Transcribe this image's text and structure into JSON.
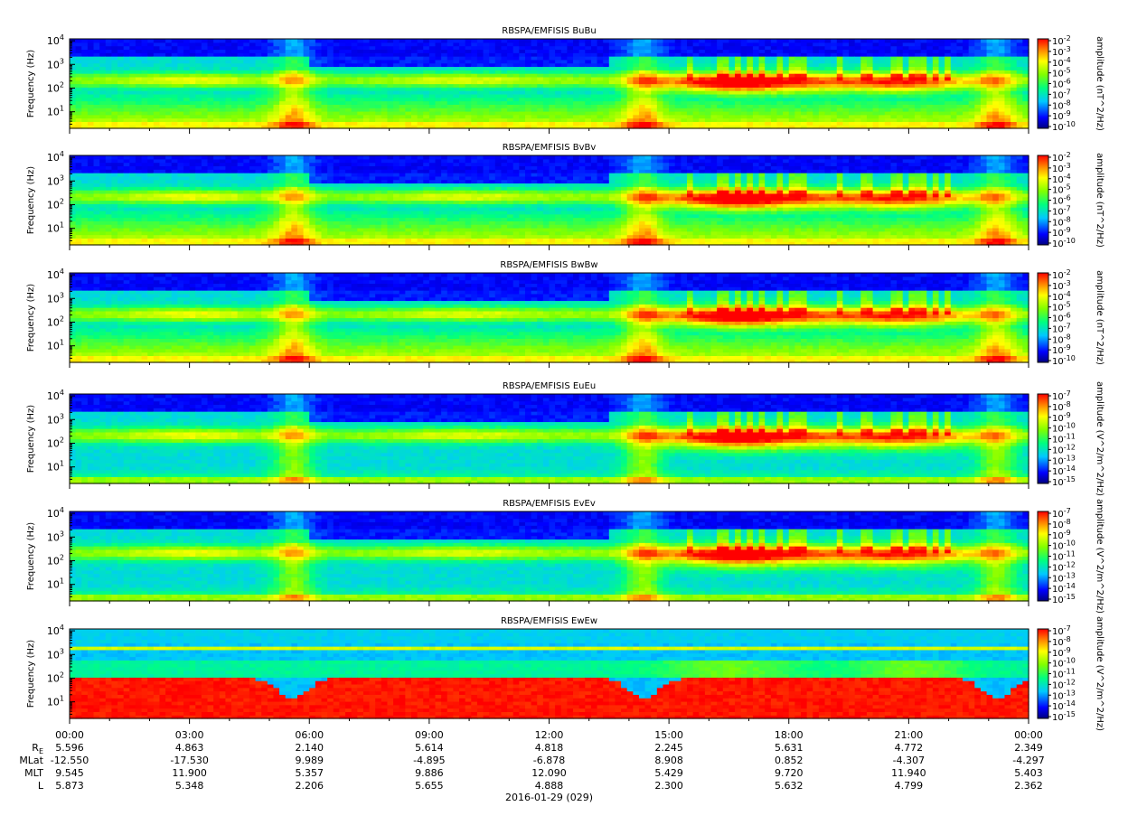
{
  "panels": [
    {
      "title": "RBSPA/EMFISIS  BuBu",
      "ylabel": "Frequency (Hz)",
      "ytick_exponents": [
        "4",
        "3",
        "2",
        "1"
      ],
      "cbar_label": "amplitude (nT^2/Hz)",
      "cbar_exponents": [
        "-2",
        "-3",
        "-4",
        "-5",
        "-6",
        "-7",
        "-8",
        "-9",
        "-10"
      ],
      "kind": "B"
    },
    {
      "title": "RBSPA/EMFISIS  BvBv",
      "ylabel": "Frequency (Hz)",
      "ytick_exponents": [
        "4",
        "3",
        "2",
        "1"
      ],
      "cbar_label": "amplitude (nT^2/Hz)",
      "cbar_exponents": [
        "-2",
        "-3",
        "-4",
        "-5",
        "-6",
        "-7",
        "-8",
        "-9",
        "-10"
      ],
      "kind": "B"
    },
    {
      "title": "RBSPA/EMFISIS  BwBw",
      "ylabel": "Frequency (Hz)",
      "ytick_exponents": [
        "4",
        "3",
        "2",
        "1"
      ],
      "cbar_label": "amplitude (nT^2/Hz)",
      "cbar_exponents": [
        "-2",
        "-3",
        "-4",
        "-5",
        "-6",
        "-7",
        "-8",
        "-9",
        "-10"
      ],
      "kind": "B"
    },
    {
      "title": "RBSPA/EMFISIS  EuEu",
      "ylabel": "Frequency (Hz)",
      "ytick_exponents": [
        "4",
        "3",
        "2",
        "1"
      ],
      "cbar_label": "amplitude (V^2/m^2/Hz)",
      "cbar_exponents": [
        "-7",
        "-8",
        "-9",
        "-10",
        "-11",
        "-12",
        "-13",
        "-14",
        "-15"
      ],
      "kind": "E"
    },
    {
      "title": "RBSPA/EMFISIS  EvEv",
      "ylabel": "Frequency (Hz)",
      "ytick_exponents": [
        "4",
        "3",
        "2",
        "1"
      ],
      "cbar_label": "amplitude (V^2/m^2/Hz)",
      "cbar_exponents": [
        "-7",
        "-8",
        "-9",
        "-10",
        "-11",
        "-12",
        "-13",
        "-14",
        "-15"
      ],
      "kind": "E"
    },
    {
      "title": "RBSPA/EMFISIS  EwEw",
      "ylabel": "Frequency (Hz)",
      "ytick_exponents": [
        "4",
        "3",
        "2",
        "1"
      ],
      "cbar_label": "amplitude (V^2/m^2/Hz)",
      "cbar_exponents": [
        "-7",
        "-8",
        "-9",
        "-10",
        "-11",
        "-12",
        "-13",
        "-14",
        "-15"
      ],
      "kind": "EW"
    }
  ],
  "chart_data": {
    "type": "heatmap",
    "x_ticks": [
      "00:00",
      "03:00",
      "06:00",
      "09:00",
      "12:00",
      "15:00",
      "18:00",
      "21:00",
      "00:00"
    ],
    "x_range_hours": [
      0,
      24
    ],
    "y_scale": "log",
    "y_range_hz": [
      2,
      12000
    ],
    "colormap": [
      "#00007f",
      "#0000ff",
      "#00c8ff",
      "#00ff80",
      "#80ff00",
      "#ffff00",
      "#ff8000",
      "#ff0000"
    ],
    "date_label": "2016-01-29 (029)",
    "ephemeris": {
      "rows": [
        {
          "name": "R",
          "sub": "E",
          "values": [
            "5.596",
            "4.863",
            "2.140",
            "5.614",
            "4.818",
            "2.245",
            "5.631",
            "4.772",
            "2.349"
          ]
        },
        {
          "name": "MLat",
          "sub": "",
          "values": [
            "-12.550",
            "-17.530",
            "9.989",
            "-4.895",
            "-6.878",
            "8.908",
            "0.852",
            "-4.307",
            "-4.297"
          ]
        },
        {
          "name": "MLT",
          "sub": "",
          "values": [
            "9.545",
            "11.900",
            "5.357",
            "9.886",
            "12.090",
            "5.429",
            "9.720",
            "11.940",
            "5.403"
          ]
        },
        {
          "name": "L",
          "sub": "",
          "values": [
            "5.873",
            "5.348",
            "2.206",
            "5.655",
            "4.888",
            "2.300",
            "5.632",
            "4.799",
            "2.362"
          ]
        }
      ]
    }
  }
}
